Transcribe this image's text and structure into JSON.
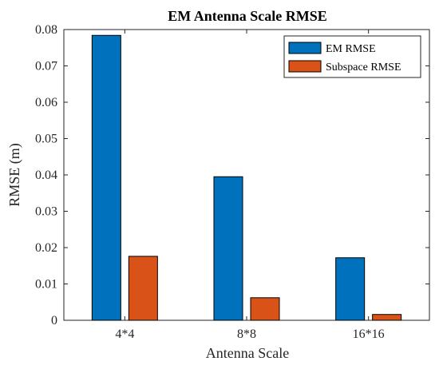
{
  "chart_data": {
    "type": "bar",
    "title": "EM Antenna Scale RMSE",
    "xlabel": "Antenna Scale",
    "ylabel": "RMSE (m)",
    "categories": [
      "4*4",
      "8*8",
      "16*16"
    ],
    "series": [
      {
        "name": "EM RMSE",
        "values": [
          0.0784,
          0.0395,
          0.0172
        ],
        "color": "#0072BD"
      },
      {
        "name": "Subspace RMSE",
        "values": [
          0.0176,
          0.0062,
          0.0016
        ],
        "color": "#D95319"
      }
    ],
    "ylim": [
      0,
      0.08
    ],
    "yticks": [
      "0",
      "0.01",
      "0.02",
      "0.03",
      "0.04",
      "0.05",
      "0.06",
      "0.07",
      "0.08"
    ],
    "grid": false,
    "legend_position": "top-right"
  }
}
